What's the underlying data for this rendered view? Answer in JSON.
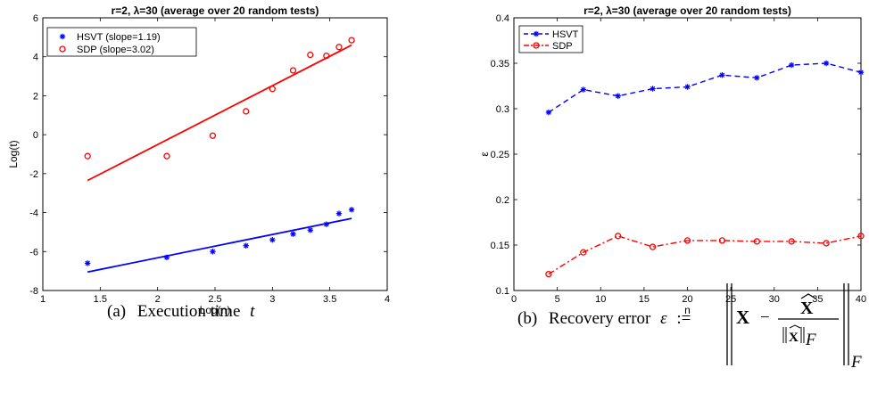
{
  "chart_data": [
    {
      "type": "scatter",
      "title": "r=2, λ=30 (average over 20 random tests)",
      "xlabel": "Log(n)",
      "ylabel": "Log(t)",
      "xlim": [
        1,
        4
      ],
      "ylim": [
        -8,
        6
      ],
      "xticks": [
        1,
        1.5,
        2,
        2.5,
        3,
        3.5,
        4
      ],
      "xtick_labels": [
        "1",
        "1.5",
        "2",
        "2.5",
        "3",
        "3.5",
        "4"
      ],
      "yticks": [
        -8,
        -6,
        -4,
        -2,
        0,
        2,
        4,
        6
      ],
      "ytick_labels": [
        "-8",
        "-6",
        "-4",
        "-2",
        "0",
        "2",
        "4",
        "6"
      ],
      "legend_position": "top-left",
      "series": [
        {
          "name": "HSVT (slope=1.19)",
          "color": "#0000ff",
          "marker": "asterisk",
          "x": [
            1.39,
            2.08,
            2.48,
            2.77,
            3.0,
            3.18,
            3.33,
            3.47,
            3.58,
            3.69
          ],
          "y": [
            -6.6,
            -6.3,
            -6.0,
            -5.7,
            -5.4,
            -5.1,
            -4.9,
            -4.6,
            -4.05,
            -3.85
          ],
          "fit": {
            "x": [
              1.39,
              3.69
            ],
            "y": [
              -7.05,
              -4.3
            ]
          }
        },
        {
          "name": "SDP (slope=3.02)",
          "color": "#ff0000",
          "marker": "circle",
          "x": [
            1.39,
            2.08,
            2.48,
            2.77,
            3.0,
            3.18,
            3.33,
            3.47,
            3.58,
            3.69
          ],
          "y": [
            -1.1,
            -1.1,
            -0.05,
            1.2,
            2.35,
            3.3,
            4.1,
            4.05,
            4.5,
            4.85
          ],
          "fit": {
            "x": [
              1.39,
              3.69
            ],
            "y": [
              -2.35,
              4.6
            ]
          }
        }
      ],
      "grid": false
    },
    {
      "type": "line",
      "title": "r=2, λ=30 (average over 20 random tests)",
      "xlabel": "n",
      "ylabel": "ε",
      "xlim": [
        0,
        40
      ],
      "ylim": [
        0.1,
        0.4
      ],
      "xticks": [
        0,
        5,
        10,
        15,
        20,
        25,
        30,
        35,
        40
      ],
      "xtick_labels": [
        "0",
        "5",
        "10",
        "15",
        "20",
        "25",
        "30",
        "35",
        "40"
      ],
      "yticks": [
        0.1,
        0.15,
        0.2,
        0.25,
        0.3,
        0.35,
        0.4
      ],
      "ytick_labels": [
        "0.1",
        "0.15",
        "0.2",
        "0.25",
        "0.3",
        "0.35",
        "0.4"
      ],
      "legend_position": "top-left",
      "x": [
        4,
        8,
        12,
        16,
        20,
        24,
        28,
        32,
        36,
        40
      ],
      "series": [
        {
          "name": "HSVT",
          "color": "#0000ff",
          "line_style": "dashed",
          "marker": "asterisk",
          "values": [
            0.296,
            0.321,
            0.314,
            0.322,
            0.324,
            0.337,
            0.334,
            0.348,
            0.35,
            0.34
          ]
        },
        {
          "name": "SDP",
          "color": "#ff0000",
          "line_style": "dash-dot",
          "marker": "circle",
          "values": [
            0.118,
            0.142,
            0.16,
            0.148,
            0.155,
            0.155,
            0.154,
            0.154,
            0.152,
            0.16
          ]
        }
      ],
      "grid": false
    }
  ],
  "captions": {
    "a": {
      "label": "(a)",
      "text": "Execution time",
      "symbol": "t"
    },
    "b": {
      "label": "(b)",
      "text": "Recovery error",
      "symbol": "ε",
      "assign": ":=",
      "X": "X",
      "minus": "−",
      "sub": "F"
    }
  }
}
